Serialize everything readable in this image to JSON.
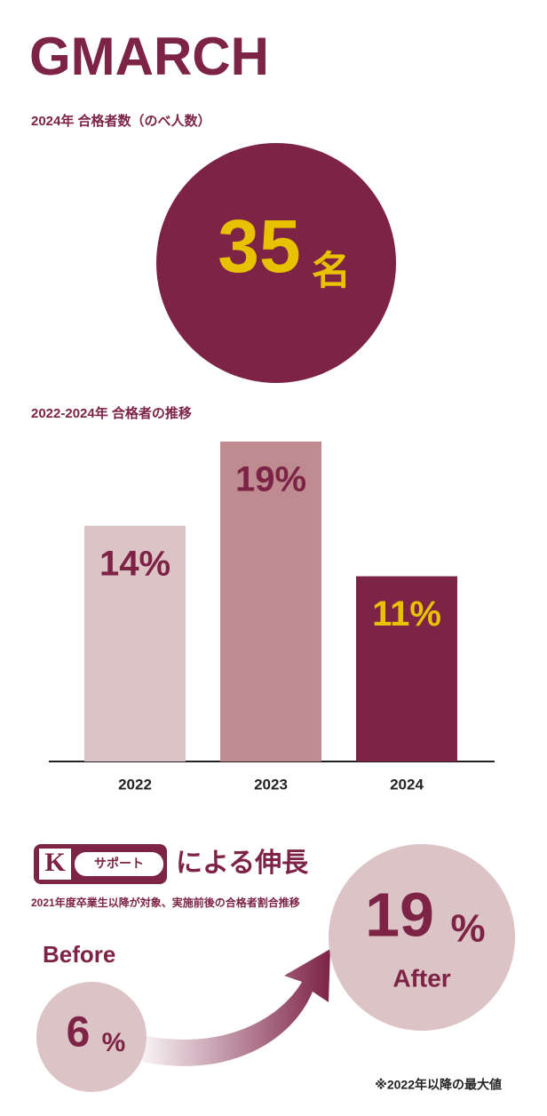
{
  "header": {
    "title": "GMARCH"
  },
  "summary": {
    "label": "2024年 合格者数（のべ人数）",
    "value": 35,
    "unit": "名"
  },
  "chart_data": {
    "type": "bar",
    "title": "2022-2024年 合格者の推移",
    "categories": [
      "2022",
      "2023",
      "2024"
    ],
    "values": [
      14,
      19,
      11
    ],
    "value_labels": [
      "14%",
      "19%",
      "11%"
    ],
    "colors": [
      "#dcc3c6",
      "#bd8b90",
      "#7d2346"
    ],
    "label_colors": [
      "#7d2346",
      "#7d2346",
      "#e8c100"
    ],
    "ylim": [
      0,
      20
    ]
  },
  "support": {
    "badge_letter": "K",
    "badge_text": "サポート",
    "heading": "による伸長",
    "note": "2021年度卒業生以降が対象、実施前後の合格者割合推移",
    "before": {
      "label": "Before",
      "value": 6,
      "unit": "%"
    },
    "after": {
      "label": "After",
      "value": 19,
      "unit": "%"
    },
    "footnote": "※2022年以降の最大値"
  }
}
